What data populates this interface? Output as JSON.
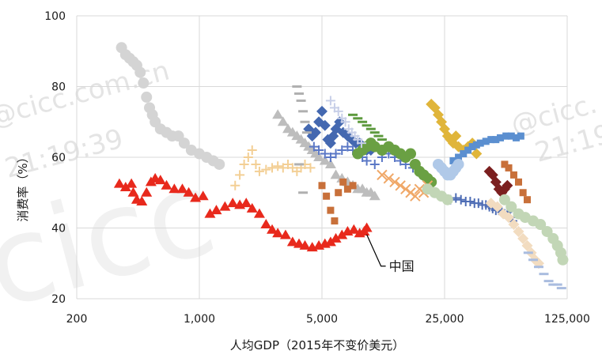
{
  "chart_data": {
    "type": "scatter",
    "title": "",
    "xlabel": "人均GDP（2015年不变价美元）",
    "ylabel": "消费率（%）",
    "x_scale": "log",
    "xlim": [
      200,
      125000
    ],
    "ylim": [
      20,
      100
    ],
    "x_ticks": [
      200,
      1000,
      5000,
      25000,
      125000
    ],
    "x_tick_labels": [
      "200",
      "1,000",
      "5,000",
      "25,000",
      "125,000"
    ],
    "y_ticks": [
      20,
      40,
      60,
      80,
      100
    ],
    "y_tick_labels": [
      "20",
      "40",
      "60",
      "80",
      "100"
    ],
    "grid": true,
    "legend": "none",
    "annotation": "中国",
    "annotation_target": [
      9000,
      39.5
    ],
    "watermarks": [
      "@cicc.com.cn",
      "21:19:39",
      "@cicc.",
      "21:19",
      "cicc"
    ],
    "series": [
      {
        "marker": "triangle",
        "color": "#e8291c",
        "x": [
          350,
          380,
          410,
          420,
          440,
          470,
          500,
          530,
          560,
          600,
          650,
          720,
          800,
          870,
          950,
          1050,
          1150,
          1250,
          1400,
          1550,
          1700,
          1850,
          2000,
          2200,
          2400,
          2600,
          2800,
          3100,
          3400,
          3700,
          4000,
          4400,
          4800,
          5200,
          5600,
          6000,
          6500,
          7000,
          7600,
          8200,
          8700,
          9000
        ],
        "y": [
          52.5,
          51.5,
          52.5,
          50,
          48,
          47.5,
          50,
          53,
          54,
          53.5,
          52,
          51,
          51,
          50,
          48.5,
          49,
          44,
          45,
          46,
          47,
          46.5,
          47,
          45.5,
          44,
          41,
          39.5,
          38.5,
          38,
          36,
          35.5,
          35,
          34.5,
          35,
          35.5,
          36,
          37,
          38,
          39,
          39.5,
          38.5,
          39,
          40
        ]
      },
      {
        "marker": "circle",
        "color": "#d4d4d4",
        "x": [
          360,
          380,
          400,
          420,
          440,
          460,
          480,
          500,
          520,
          540,
          560,
          600,
          650,
          700,
          760,
          820,
          900,
          1000,
          1100,
          1200,
          1300
        ],
        "y": [
          91,
          89,
          88,
          87,
          86,
          84,
          81,
          77,
          74,
          72,
          70,
          68,
          67,
          66,
          66,
          64,
          62,
          61,
          60,
          59,
          58
        ]
      },
      {
        "marker": "plus",
        "color": "#f3cf95",
        "x": [
          1600,
          1700,
          1800,
          1900,
          2000,
          2100,
          2200,
          2400,
          2600,
          2800,
          3000,
          3200,
          3400,
          3600,
          3800,
          4000,
          4300
        ],
        "y": [
          52,
          55,
          58,
          60,
          62,
          58,
          56,
          56.5,
          57,
          57.5,
          57,
          58,
          57,
          56,
          57,
          58,
          57
        ]
      },
      {
        "marker": "triangle",
        "color": "#bdbdbd",
        "x": [
          2800,
          3000,
          3200,
          3400,
          3600,
          3800,
          4000,
          4200,
          4400,
          4600,
          4800,
          5200,
          5600,
          6000,
          6500,
          7000,
          7500,
          8000,
          8500,
          9000,
          9500,
          10000
        ],
        "y": [
          72,
          70,
          68,
          67,
          66,
          65,
          64,
          63,
          62,
          61,
          60,
          59,
          58,
          55,
          54,
          53,
          52,
          51,
          51,
          50,
          50,
          49
        ]
      },
      {
        "marker": "diamond",
        "color": "#4468b0",
        "x": [
          4200,
          4400,
          4600,
          4800,
          5000,
          5200,
          5400,
          5600,
          5800,
          6000,
          6300,
          6600,
          7000,
          7400,
          7800,
          8200,
          8600,
          9000,
          9500,
          10000
        ],
        "y": [
          68,
          66,
          67,
          70,
          73,
          69,
          65,
          64,
          66,
          68,
          70,
          67,
          66,
          65,
          64,
          64,
          63,
          62,
          62,
          63
        ]
      },
      {
        "marker": "plus",
        "color": "#5b78c6",
        "x": [
          4500,
          4800,
          5200,
          5600,
          6000,
          6500,
          7000,
          7500,
          8000,
          8500,
          9000,
          10000,
          11000,
          12000,
          13000,
          14000,
          15000,
          16500,
          18000
        ],
        "y": [
          63,
          62,
          61,
          60,
          61,
          62,
          63,
          62,
          61,
          60,
          59,
          58,
          60,
          61,
          60,
          59,
          58,
          57,
          56
        ]
      },
      {
        "marker": "circle",
        "color": "#6aa043",
        "x": [
          8000,
          8500,
          9000,
          9500,
          10000,
          11000,
          12000,
          13000,
          14000,
          15000,
          16000,
          17000,
          18000,
          19000,
          20000,
          21000
        ],
        "y": [
          61,
          62,
          63,
          64,
          63,
          62,
          63,
          62,
          61,
          60,
          61,
          58,
          56,
          55,
          54,
          53
        ]
      },
      {
        "marker": "cross",
        "color": "#f0a868",
        "x": [
          11000,
          12000,
          13000,
          14000,
          15000,
          16000,
          17000,
          18000,
          19000,
          20000
        ],
        "y": [
          55,
          54,
          53,
          52,
          51,
          50,
          49,
          51,
          50,
          52
        ]
      },
      {
        "marker": "diamond",
        "color": "#e0b53a",
        "x": [
          21000,
          22000,
          23000,
          24000,
          25000,
          26000,
          27000,
          28000,
          29000,
          30000,
          32000,
          34000,
          36000,
          38000
        ],
        "y": [
          75,
          74,
          72,
          70,
          68,
          66,
          65,
          64,
          66,
          63,
          62,
          63,
          64,
          61
        ]
      },
      {
        "marker": "square",
        "color": "#5b8fd0",
        "x": [
          28000,
          30000,
          32000,
          34000,
          36000,
          38000,
          40000,
          43000,
          46000,
          49000,
          52000,
          56000,
          60000,
          64000,
          68000
        ],
        "y": [
          59,
          60,
          61,
          62,
          63,
          63.5,
          64,
          64.5,
          65,
          65,
          65.5,
          66,
          66,
          65.5,
          66
        ]
      },
      {
        "marker": "circle",
        "color": "#b0c9e8",
        "x": [
          23000,
          24000,
          25000,
          26000,
          27000,
          28000,
          29000,
          30000
        ],
        "y": [
          58,
          57,
          56,
          55,
          55,
          56,
          57,
          58
        ]
      },
      {
        "marker": "diamond",
        "color": "#7b1f1f",
        "x": [
          45000,
          47000,
          49000,
          51000,
          53000,
          55000,
          57000
        ],
        "y": [
          56,
          55,
          53,
          51,
          50,
          51,
          52
        ]
      },
      {
        "marker": "square",
        "color": "#c8703a",
        "x": [
          5000,
          5300,
          5600,
          5900,
          6200,
          6600,
          7000,
          7500,
          55000,
          58000,
          62000,
          66000,
          70000,
          74000
        ],
        "y": [
          52,
          49,
          45,
          42,
          50,
          53,
          51,
          52,
          58,
          57,
          55,
          53,
          50,
          48
        ]
      },
      {
        "marker": "plus",
        "color": "#4e6db5",
        "x": [
          27000,
          29000,
          31000,
          33000,
          35000,
          37000,
          39000,
          41000,
          43000,
          45000,
          47000,
          49000,
          51000,
          53000,
          55000,
          57000,
          59000,
          61000
        ],
        "y": [
          48,
          48.5,
          48,
          47.5,
          47.5,
          47,
          47,
          46.5,
          46.5,
          46,
          45.5,
          45,
          45,
          44.5,
          44,
          44.5,
          43,
          42
        ]
      },
      {
        "marker": "diamond",
        "color": "#f2dcc0",
        "x": [
          46000,
          50000,
          54000,
          58000,
          62000,
          66000,
          70000,
          74000,
          78000,
          82000,
          86000
        ],
        "y": [
          47,
          46,
          44,
          43,
          41,
          39,
          37,
          35,
          33,
          31,
          30
        ]
      },
      {
        "marker": "circle",
        "color": "#c2d6b6",
        "x": [
          20000,
          22000,
          24000,
          26000,
          55000,
          60000,
          66000,
          72000,
          80000,
          88000,
          96000,
          104000,
          110000,
          115000,
          118000
        ],
        "y": [
          51,
          50,
          49,
          48,
          48,
          46,
          44,
          43,
          42,
          41,
          39,
          37,
          35,
          33,
          31
        ]
      },
      {
        "marker": "dash",
        "color": "#a9bcdf",
        "x": [
          75000,
          80000,
          86000,
          92000,
          98000,
          104000,
          110000,
          116000
        ],
        "y": [
          33,
          31,
          29,
          27,
          25,
          24,
          24,
          23
        ]
      },
      {
        "marker": "dash",
        "color": "#5d9a3e",
        "x": [
          7500,
          8000,
          8500,
          9000,
          9500,
          10000,
          10500,
          11000
        ],
        "y": [
          72,
          71,
          70,
          69,
          68,
          67,
          66,
          65
        ]
      },
      {
        "marker": "dash",
        "color": "#b0b0b0",
        "x": [
          3600,
          3700,
          3800,
          3900,
          4000,
          4100,
          3700,
          3900
        ],
        "y": [
          80,
          78,
          76,
          73,
          70,
          67,
          58,
          50
        ]
      },
      {
        "marker": "plus",
        "color": "#c8cfe8",
        "x": [
          5600,
          5900,
          6200,
          6500,
          6800,
          7100,
          7400,
          7700,
          8000,
          8400
        ],
        "y": [
          76,
          74,
          73,
          71,
          70,
          68,
          67,
          66,
          65,
          64
        ]
      }
    ]
  }
}
